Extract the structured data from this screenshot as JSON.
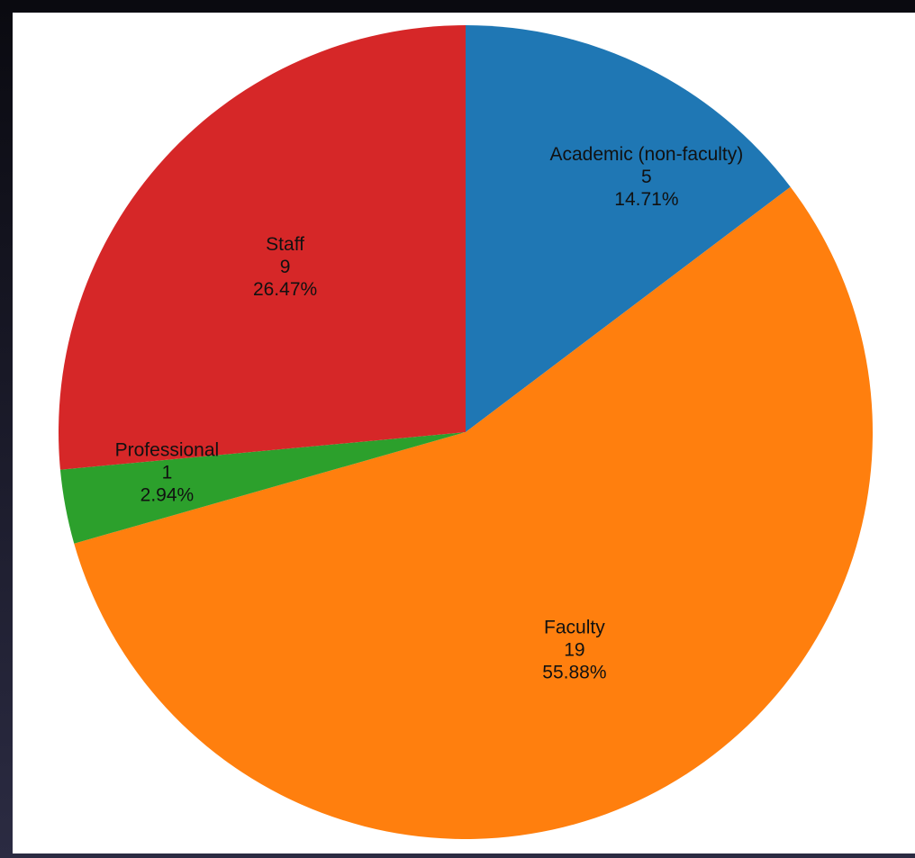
{
  "chart_data": {
    "type": "pie",
    "slices": [
      {
        "label": "Academic (non-faculty)",
        "value": 5,
        "percent": "14.71%",
        "color": "#1f77b4"
      },
      {
        "label": "Faculty",
        "value": 19,
        "percent": "55.88%",
        "color": "#ff7f0e"
      },
      {
        "label": "Professional",
        "value": 1,
        "percent": "2.94%",
        "color": "#2ca02c"
      },
      {
        "label": "Staff",
        "value": 9,
        "percent": "26.47%",
        "color": "#d62728"
      }
    ],
    "start_angle": "12 o'clock",
    "direction": "clockwise"
  }
}
